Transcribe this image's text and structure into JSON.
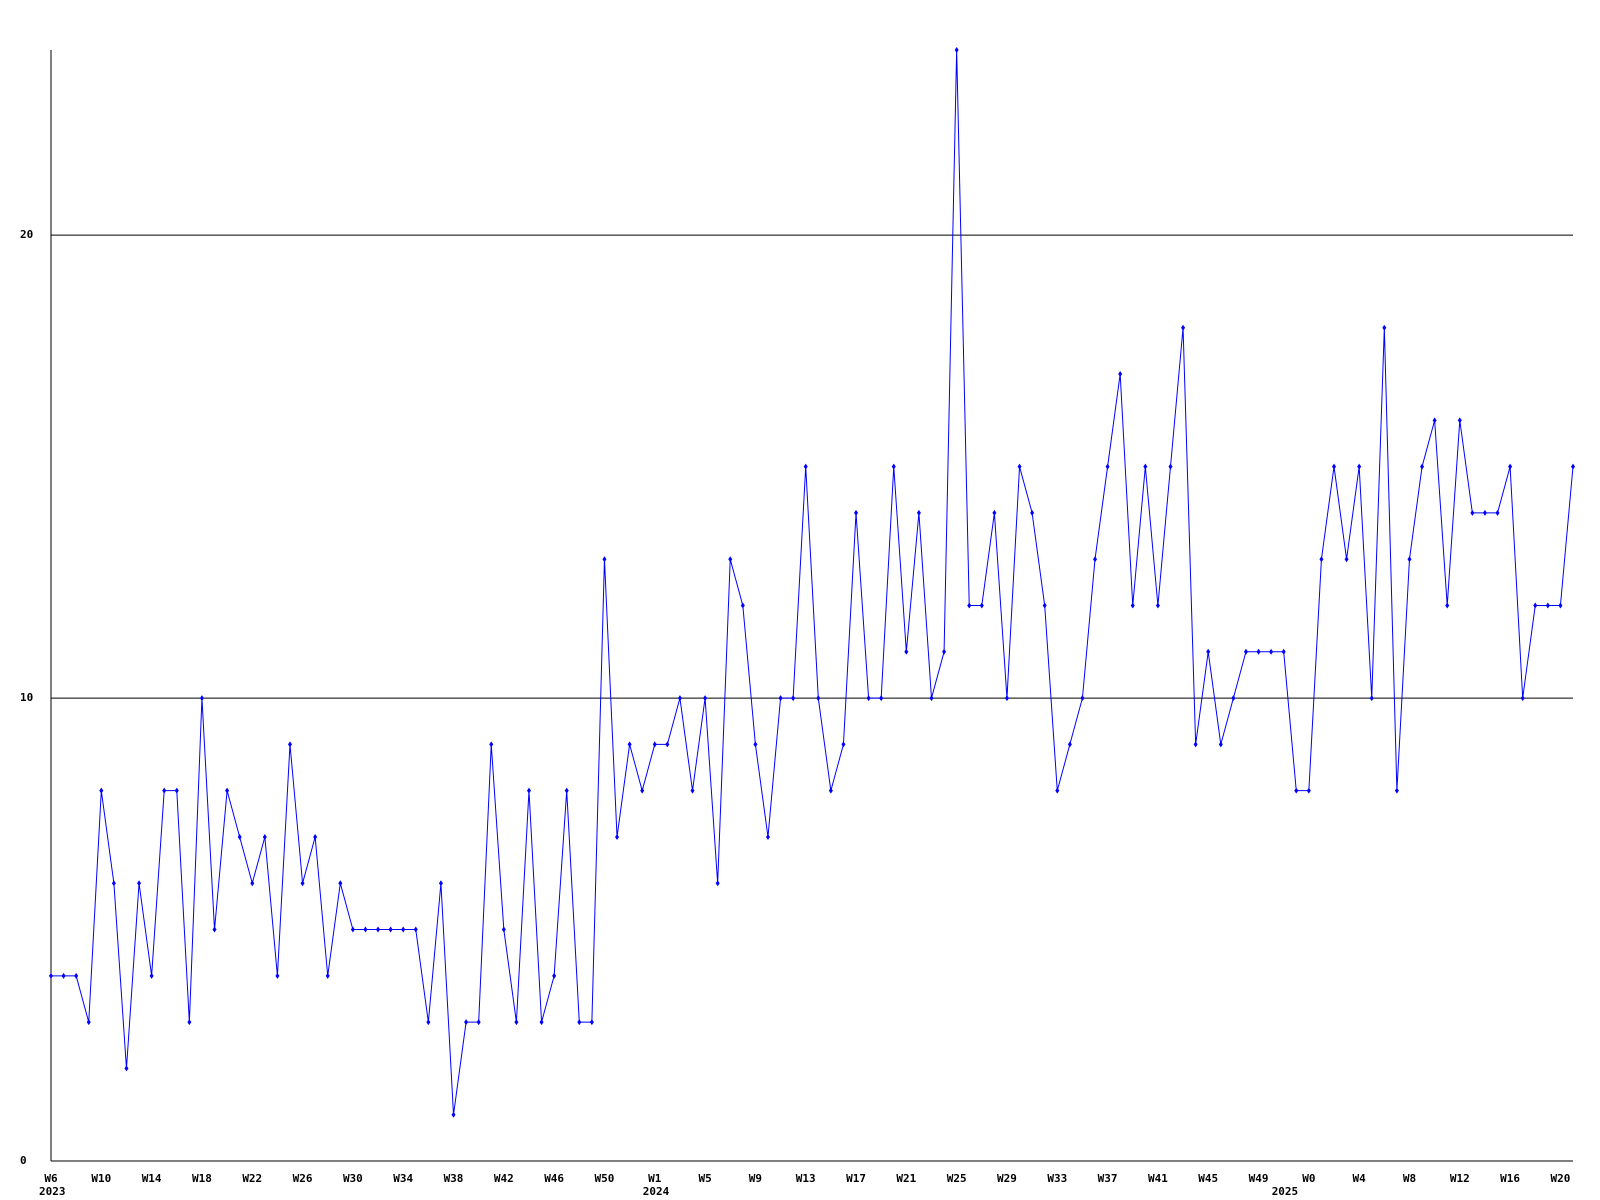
{
  "chart_data": {
    "type": "line",
    "categories": [
      "W6",
      null,
      null,
      null,
      "W10",
      null,
      null,
      null,
      "W14",
      null,
      null,
      null,
      "W18",
      null,
      null,
      null,
      "W22",
      null,
      null,
      null,
      "W26",
      null,
      null,
      null,
      "W30",
      null,
      null,
      null,
      "W34",
      null,
      null,
      null,
      "W38",
      null,
      null,
      null,
      "W42",
      null,
      null,
      null,
      "W46",
      null,
      null,
      null,
      "W50",
      null,
      null,
      null,
      "W1",
      null,
      null,
      null,
      "W5",
      null,
      null,
      null,
      "W9",
      null,
      null,
      null,
      "W13",
      null,
      null,
      null,
      "W17",
      null,
      null,
      null,
      "W21",
      null,
      null,
      null,
      "W25",
      null,
      null,
      null,
      "W29",
      null,
      null,
      null,
      "W33",
      null,
      null,
      null,
      "W37",
      null,
      null,
      null,
      "W41",
      null,
      null,
      null,
      "W45",
      null,
      null,
      null,
      "W49",
      null,
      null,
      null,
      "W0",
      null,
      null,
      null,
      "W4",
      null,
      null,
      null,
      "W8",
      null,
      null,
      null,
      "W12",
      null,
      null,
      null,
      "W16",
      null,
      null,
      null,
      "W20",
      null
    ],
    "years": [
      "2023",
      null,
      null,
      null,
      null,
      null,
      null,
      null,
      null,
      null,
      null,
      null,
      null,
      null,
      null,
      null,
      null,
      null,
      null,
      null,
      null,
      null,
      null,
      null,
      null,
      null,
      null,
      null,
      null,
      null,
      null,
      null,
      null,
      null,
      null,
      null,
      null,
      null,
      null,
      null,
      null,
      null,
      null,
      null,
      null,
      null,
      null,
      null,
      "2024",
      null,
      null,
      null,
      null,
      null,
      null,
      null,
      null,
      null,
      null,
      null,
      null,
      null,
      null,
      null,
      null,
      null,
      null,
      null,
      null,
      null,
      null,
      null,
      null,
      null,
      null,
      null,
      null,
      null,
      null,
      null,
      null,
      null,
      null,
      null,
      null,
      null,
      null,
      null,
      null,
      null,
      null,
      null,
      null,
      null,
      null,
      null,
      null,
      null,
      "2025",
      null,
      null,
      null,
      null,
      null,
      null,
      null,
      null,
      null,
      null,
      null,
      null,
      null,
      null,
      null,
      null,
      null,
      null,
      null,
      null,
      null
    ],
    "series": [
      {
        "color": "#0000ff",
        "values": [
          4,
          4,
          4,
          3,
          8,
          6,
          2,
          6,
          4,
          8,
          8,
          3,
          10,
          5,
          8,
          7,
          6,
          7,
          4,
          9,
          6,
          7,
          4,
          6,
          5,
          5,
          5,
          5,
          5,
          5,
          3,
          6,
          1,
          3,
          3,
          9,
          5,
          3,
          8,
          3,
          4,
          8,
          3,
          3,
          13,
          7,
          9,
          8,
          9,
          9,
          10,
          8,
          10,
          6,
          13,
          12,
          9,
          7,
          10,
          10,
          15,
          10,
          8,
          9,
          14,
          10,
          10,
          15,
          11,
          14,
          10,
          11,
          24,
          12,
          12,
          14,
          10,
          15,
          14,
          12,
          8,
          9,
          10,
          13,
          15,
          17,
          12,
          15,
          12,
          15,
          18,
          9,
          11,
          9,
          10,
          11,
          11,
          11,
          11,
          8,
          8,
          13,
          15,
          13,
          15,
          10,
          18,
          8,
          13,
          15,
          16,
          12,
          16,
          14,
          14,
          14,
          15,
          10,
          12,
          12,
          12,
          15
        ]
      }
    ],
    "ylim": [
      0,
      24
    ],
    "yticks": [
      0,
      10,
      20
    ],
    "grid": true
  }
}
